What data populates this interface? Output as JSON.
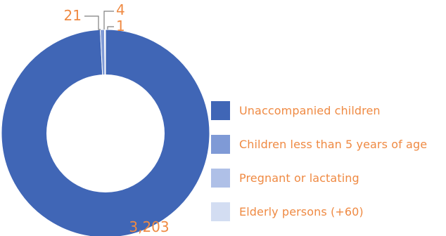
{
  "chart_data": {
    "type": "pie",
    "variant": "donut",
    "categories": [
      "Unaccompanied children",
      "Children less than 5 years of age",
      "Pregnant or lactating",
      "Elderly persons (+60)"
    ],
    "values": [
      3203,
      21,
      4,
      1
    ],
    "data_labels": [
      "3,203",
      "21",
      "4",
      "1"
    ],
    "colors": [
      "#4066b6",
      "#7f9ad6",
      "#afc0e7",
      "#d3ddf2"
    ],
    "label_color": "#ef8a43",
    "legend_position": "right"
  }
}
